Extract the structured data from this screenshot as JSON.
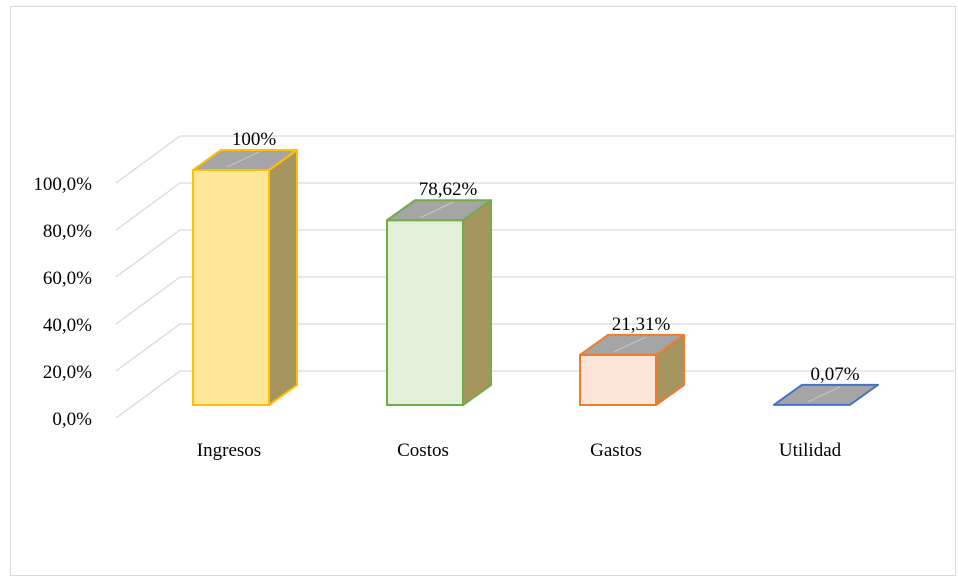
{
  "chart_data": {
    "type": "bar",
    "title": "",
    "xlabel": "",
    "ylabel": "",
    "ylim": [
      0,
      100
    ],
    "grid": true,
    "legend": "none",
    "yticks": [
      "0,0%",
      "20,0%",
      "40,0%",
      "60,0%",
      "80,0%",
      "100,0%"
    ],
    "categories": [
      "Ingresos",
      "Costos",
      "Gastos",
      "Utilidad"
    ],
    "values": [
      100,
      78.62,
      21.31,
      0.07
    ],
    "data_labels": [
      "100%",
      "78,62%",
      "21,31%",
      "0,07%"
    ],
    "colors": {
      "fill": [
        "#ffe699",
        "#e2f0d9",
        "#fce4d6",
        "#dae3f3"
      ],
      "stroke": [
        "#ffc000",
        "#70ad47",
        "#ed7d31",
        "#4472c4"
      ],
      "side": "#a6955e",
      "top": "#a5a5a5",
      "grid": "#d9d9d9"
    }
  }
}
